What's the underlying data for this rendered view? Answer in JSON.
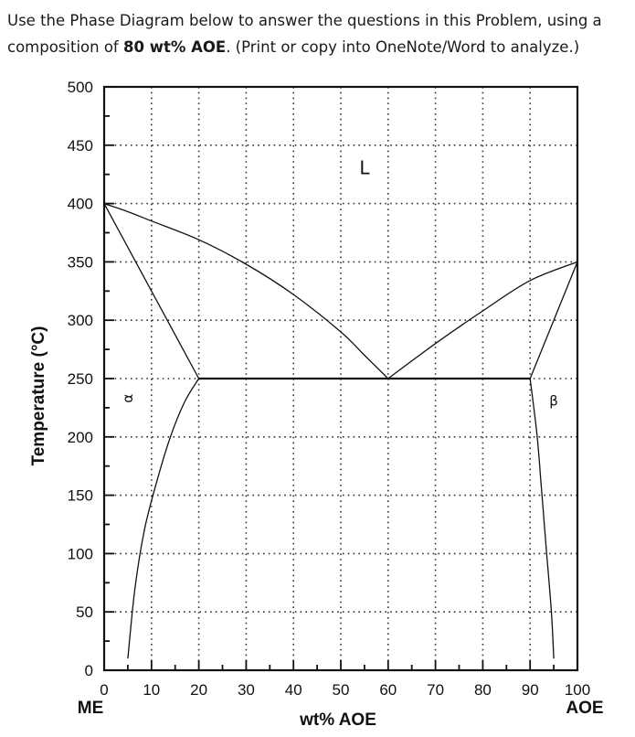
{
  "problem": {
    "text_before": "Use the Phase Diagram below to answer the questions in this Problem, using a composition of ",
    "composition": "80 wt% AOE",
    "text_after": ". (Print or copy into OneNote/Word to analyze.)"
  },
  "chart_data": {
    "type": "line",
    "title": "",
    "xlabel": "wt% AOE",
    "ylabel": "Temperature (°C)",
    "xlim": [
      0,
      100
    ],
    "ylim": [
      0,
      500
    ],
    "x_ticks": [
      0,
      10,
      20,
      30,
      40,
      50,
      60,
      70,
      80,
      90,
      100
    ],
    "y_ticks": [
      0,
      50,
      100,
      150,
      200,
      250,
      300,
      350,
      400,
      450,
      500
    ],
    "x_end_labels": {
      "left": "ME",
      "right": "AOE"
    },
    "grid": true,
    "series": [
      {
        "id": "liquidus-left",
        "points": [
          [
            0,
            400
          ],
          [
            5,
            393
          ],
          [
            10,
            385
          ],
          [
            20,
            369
          ],
          [
            30,
            348
          ],
          [
            40,
            322
          ],
          [
            50,
            290
          ],
          [
            55,
            270
          ],
          [
            60,
            250
          ]
        ]
      },
      {
        "id": "liquidus-right",
        "points": [
          [
            60,
            250
          ],
          [
            70,
            280
          ],
          [
            80,
            308
          ],
          [
            90,
            334
          ],
          [
            100,
            350
          ]
        ]
      },
      {
        "id": "solidus-alpha",
        "points": [
          [
            0,
            400
          ],
          [
            20,
            250
          ]
        ]
      },
      {
        "id": "solvus-alpha",
        "points": [
          [
            20,
            250
          ],
          [
            17,
            230
          ],
          [
            14,
            200
          ],
          [
            11,
            160
          ],
          [
            8.5,
            120
          ],
          [
            6.5,
            70
          ],
          [
            5,
            10
          ]
        ]
      },
      {
        "id": "solidus-beta",
        "points": [
          [
            100,
            350
          ],
          [
            90,
            250
          ]
        ]
      },
      {
        "id": "solvus-beta",
        "points": [
          [
            90,
            250
          ],
          [
            91.5,
            200
          ],
          [
            92.5,
            150
          ],
          [
            93.5,
            100
          ],
          [
            94.5,
            50
          ],
          [
            95,
            10
          ]
        ]
      },
      {
        "id": "eutectic-isotherm",
        "points": [
          [
            20,
            250
          ],
          [
            90,
            250
          ]
        ]
      }
    ],
    "phase_labels": [
      {
        "text": "L",
        "x": 55,
        "y": 425,
        "size": 20
      },
      {
        "text": "α",
        "x": 6,
        "y": 233,
        "size": 15,
        "rotate": -90
      },
      {
        "text": "β",
        "x": 95,
        "y": 227,
        "size": 15
      }
    ]
  }
}
